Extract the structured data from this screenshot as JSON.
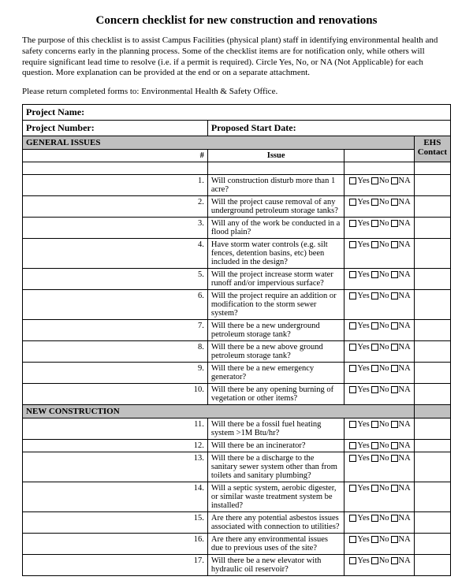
{
  "title": "Concern checklist for new construction and renovations",
  "intro": "The purpose of this checklist is to assist Campus Facilities (physical plant) staff in identifying environmental health and safety concerns early in the planning process. Some of the checklist items are for notification only, while others will require significant lead time to resolve (i.e. if a permit is required). Circle Yes, No, or NA (Not Applicable) for each question. More explanation can be provided at the end or on a separate attachment.",
  "return_line": "Please return completed forms to:  Environmental Health & Safety Office.",
  "project_name_label": "Project Name:",
  "project_number_label": "Project Number:",
  "proposed_start_label": "Proposed  Start Date:",
  "columns": {
    "num": "#",
    "issue": "Issue",
    "ehs": "EHS Contact"
  },
  "responses": {
    "yes": "Yes",
    "no": "No",
    "na": "NA"
  },
  "sections": [
    {
      "header": "GENERAL ISSUES",
      "rows": [
        {
          "n": "1.",
          "q": "Will construction disturb more than 1 acre?"
        },
        {
          "n": "2.",
          "q": "Will the project cause removal of any underground petroleum storage tanks?"
        },
        {
          "n": "3.",
          "q": "Will any of the work be conducted in a flood plain?"
        },
        {
          "n": "4.",
          "q": "Have storm water controls (e.g. silt fences, detention basins, etc) been included in the design?"
        },
        {
          "n": "5.",
          "q": "Will the project increase storm water runoff and/or impervious surface?"
        },
        {
          "n": "6.",
          "q": "Will the project require an addition or modification to the storm sewer system?"
        },
        {
          "n": "7.",
          "q": "Will there be a new underground petroleum storage tank?"
        },
        {
          "n": "8.",
          "q": "Will there be a new above ground petroleum storage tank?"
        },
        {
          "n": "9.",
          "q": "Will there be a new emergency generator?"
        },
        {
          "n": "10.",
          "q": "Will there be any opening burning of vegetation or other items?"
        }
      ]
    },
    {
      "header": "NEW CONSTRUCTION",
      "rows": [
        {
          "n": "11.",
          "q": "Will there be a fossil fuel heating system >1M Btu/hr?"
        },
        {
          "n": "12.",
          "q": "Will there be an incinerator?"
        },
        {
          "n": "13.",
          "q": "Will there be a discharge to the sanitary sewer system other than from toilets and sanitary plumbing?"
        },
        {
          "n": "14.",
          "q": "Will a septic system, aerobic digester, or similar waste treatment system be installed?"
        },
        {
          "n": "15.",
          "q": "Are there any potential asbestos issues associated with connection to utilities?"
        },
        {
          "n": "16.",
          "q": "Are there any environmental issues due to previous uses of the site?"
        },
        {
          "n": "17.",
          "q": "Will there be a new elevator with hydraulic oil reservoir?"
        }
      ]
    }
  ]
}
